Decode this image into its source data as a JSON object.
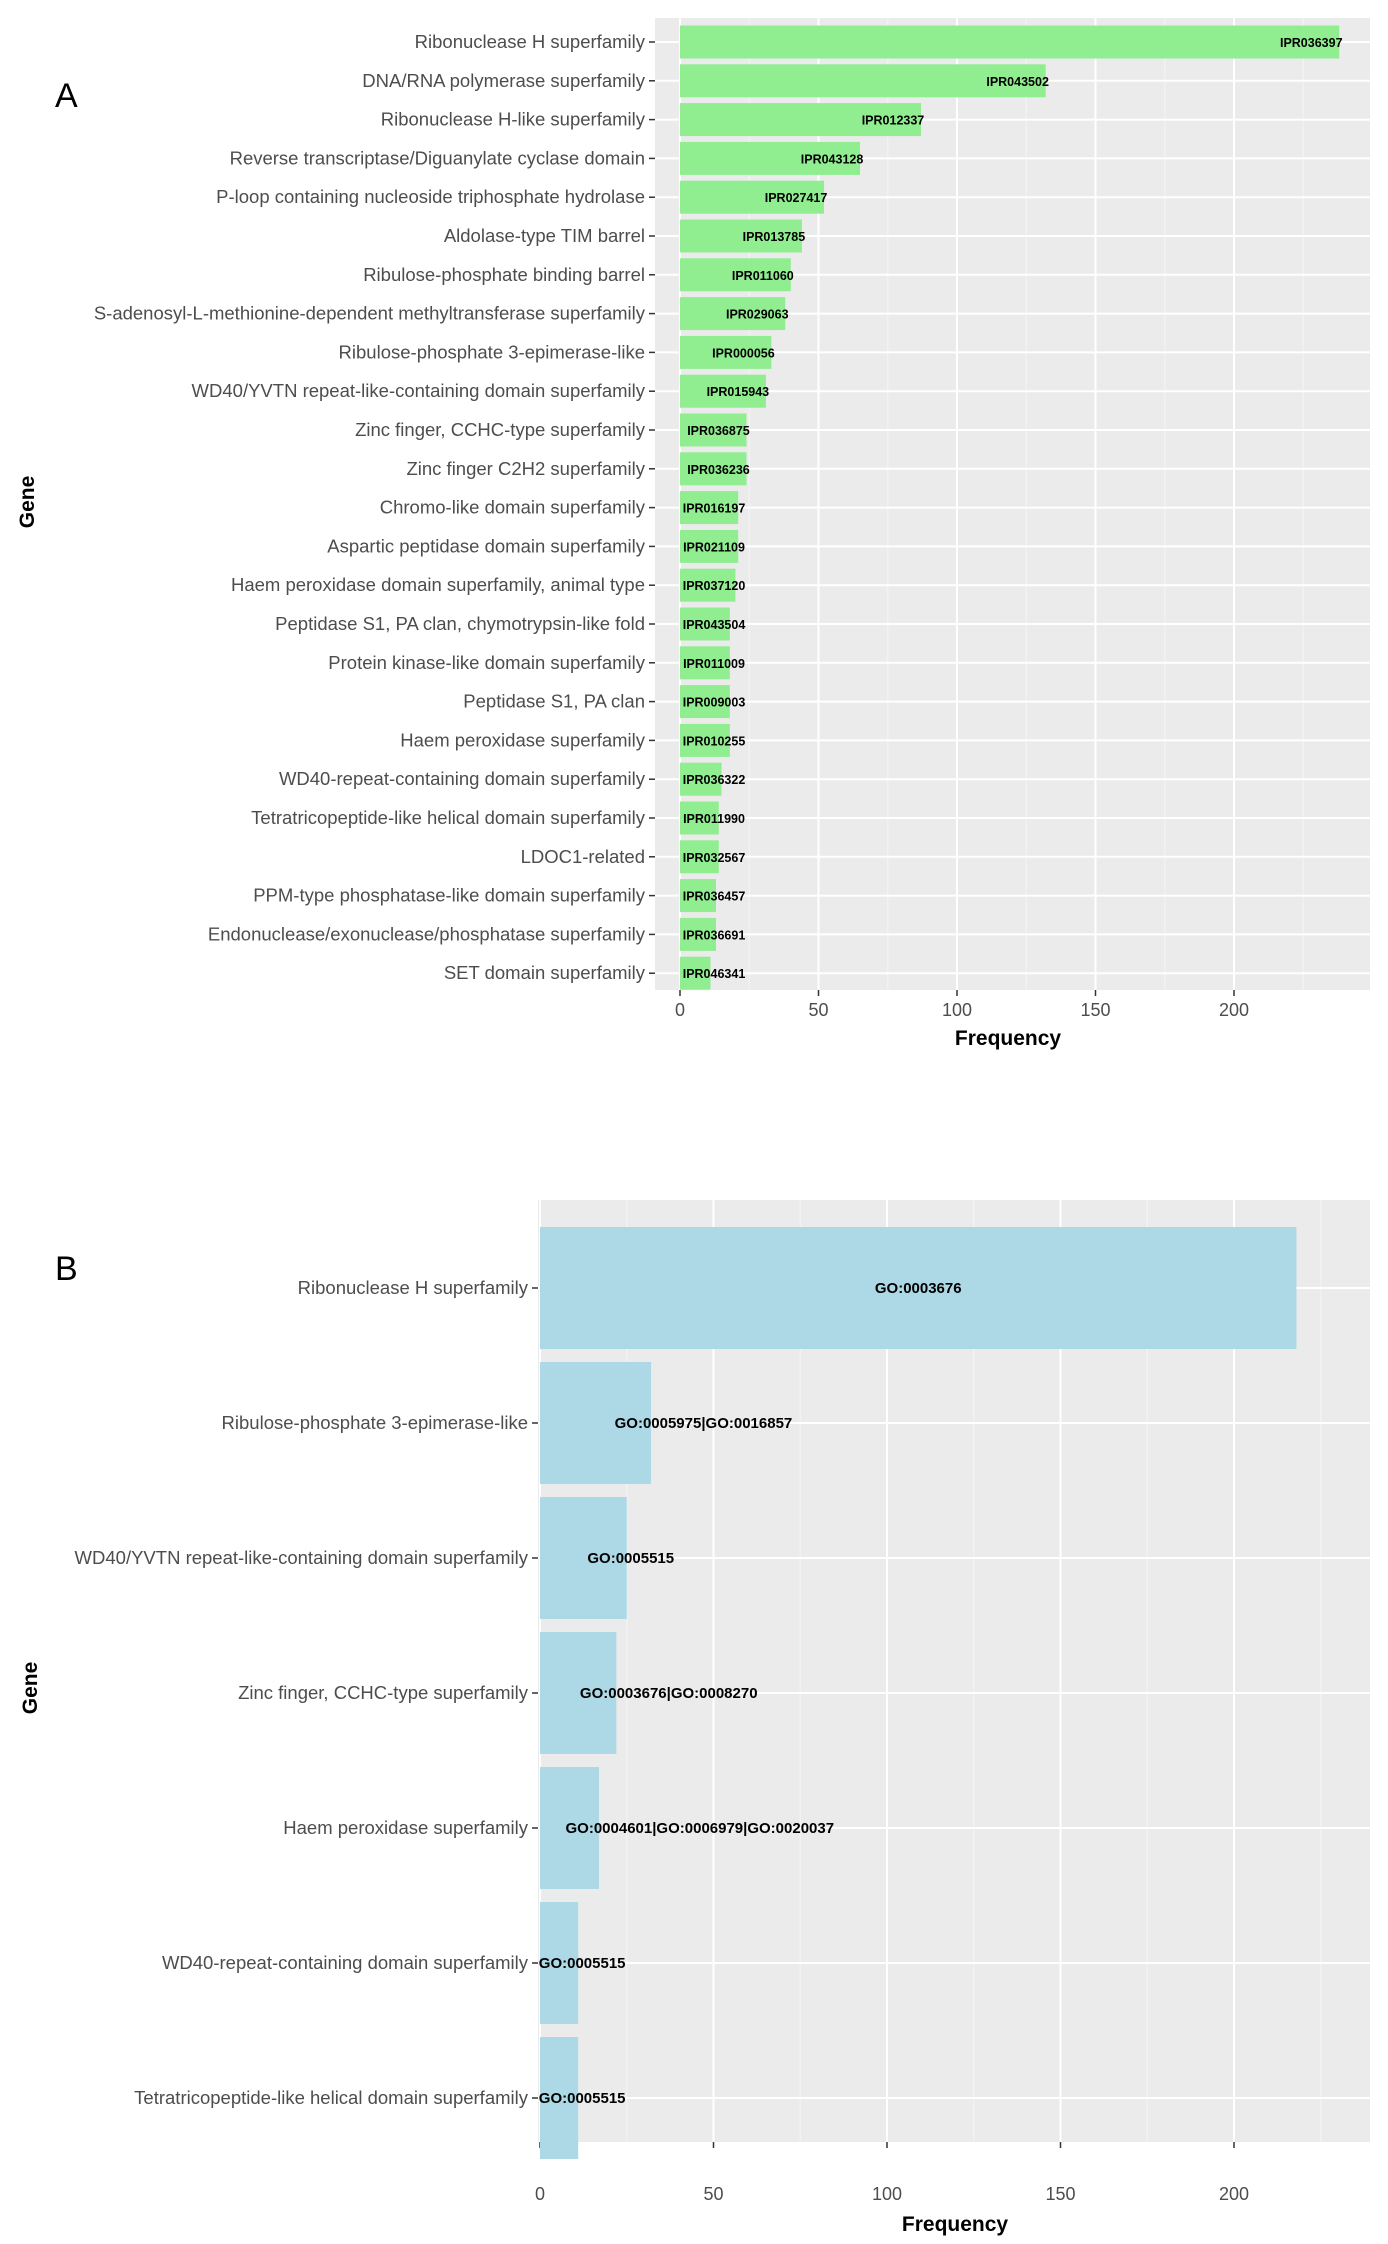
{
  "chart_data": [
    {
      "panel": "A",
      "type": "bar",
      "orientation": "horizontal",
      "title": "",
      "xlabel": "Frequency",
      "ylabel": "Gene",
      "xlim": [
        0,
        250
      ],
      "xticks": [
        "0",
        "50",
        "100",
        "150",
        "200"
      ],
      "bar_color": "#90EE90",
      "categories": [
        "Ribonuclease H superfamily",
        "DNA/RNA polymerase superfamily",
        "Ribonuclease H-like superfamily",
        "Reverse transcriptase/Diguanylate cyclase domain",
        "P-loop containing nucleoside triphosphate hydrolase",
        "Aldolase-type TIM barrel",
        "Ribulose-phosphate binding barrel",
        "S-adenosyl-L-methionine-dependent methyltransferase superfamily",
        "Ribulose-phosphate 3-epimerase-like",
        "WD40/YVTN repeat-like-containing domain superfamily",
        "Zinc finger, CCHC-type superfamily",
        "Zinc finger C2H2 superfamily",
        "Chromo-like domain superfamily",
        "Aspartic peptidase domain superfamily",
        "Haem peroxidase domain superfamily, animal type",
        "Peptidase S1, PA clan, chymotrypsin-like fold",
        "Protein kinase-like domain superfamily",
        "Peptidase S1, PA clan",
        "Haem peroxidase superfamily",
        "WD40-repeat-containing domain superfamily",
        "Tetratricopeptide-like helical domain superfamily",
        "LDOC1-related",
        "PPM-type phosphatase-like domain superfamily",
        "Endonuclease/exonuclease/phosphatase superfamily",
        "SET domain superfamily"
      ],
      "values": [
        238,
        132,
        87,
        65,
        52,
        44,
        40,
        38,
        33,
        31,
        24,
        24,
        21,
        21,
        20,
        18,
        18,
        18,
        18,
        15,
        14,
        14,
        13,
        13,
        11
      ],
      "labels": [
        "IPR036397",
        "IPR043502",
        "IPR012337",
        "IPR043128",
        "IPR027417",
        "IPR013785",
        "IPR011060",
        "IPR029063",
        "IPR000056",
        "IPR015943",
        "IPR036875",
        "IPR036236",
        "IPR016197",
        "IPR021109",
        "IPR037120",
        "IPR043504",
        "IPR011009",
        "IPR009003",
        "IPR010255",
        "IPR036322",
        "IPR011990",
        "IPR032567",
        "IPR036457",
        "IPR036691",
        "IPR046341"
      ]
    },
    {
      "panel": "B",
      "type": "bar",
      "orientation": "horizontal",
      "title": "",
      "xlabel": "Frequency",
      "ylabel": "Gene",
      "xlim": [
        0,
        230
      ],
      "xticks": [
        "0",
        "50",
        "100",
        "150",
        "200"
      ],
      "bar_color": "#ADD8E6",
      "categories": [
        "Ribonuclease H superfamily",
        "Ribulose-phosphate 3-epimerase-like",
        "WD40/YVTN repeat-like-containing domain superfamily",
        "Zinc finger, CCHC-type superfamily",
        "Haem peroxidase superfamily",
        "WD40-repeat-containing domain superfamily",
        "Tetratricopeptide-like helical domain superfamily"
      ],
      "values": [
        218,
        32,
        25,
        22,
        17,
        11,
        11
      ],
      "labels": [
        "GO:0003676",
        "GO:0005975|GO:0016857",
        "GO:0005515",
        "GO:0003676|GO:0008270",
        "GO:0004601|GO:0006979|GO:0020037",
        "GO:0005515",
        "GO:0005515"
      ]
    }
  ]
}
